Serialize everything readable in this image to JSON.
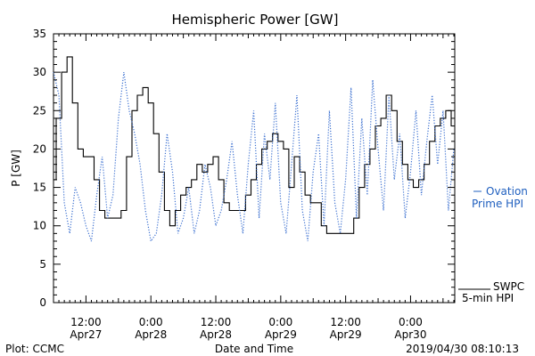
{
  "chart_data": {
    "type": "line",
    "title": "Hemispheric Power [GW]",
    "xlabel": "Date and Time",
    "ylabel": "P [GW]",
    "ylim": [
      0,
      35
    ],
    "yticks": [
      0,
      5,
      10,
      15,
      20,
      25,
      30,
      35
    ],
    "xticks": [
      {
        "x": "2019-04-27 12:00",
        "line1": "12:00",
        "line2": "Apr27"
      },
      {
        "x": "2019-04-28 00:00",
        "line1": "0:00",
        "line2": "Apr28"
      },
      {
        "x": "2019-04-28 12:00",
        "line1": "12:00",
        "line2": "Apr28"
      },
      {
        "x": "2019-04-29 00:00",
        "line1": "0:00",
        "line2": "Apr29"
      },
      {
        "x": "2019-04-29 12:00",
        "line1": "12:00",
        "line2": "Apr29"
      },
      {
        "x": "2019-04-30 00:00",
        "line1": "0:00",
        "line2": "Apr30"
      }
    ],
    "xlim": [
      "2019-04-27 06:00",
      "2019-04-30 08:10"
    ],
    "legend": [
      {
        "series": "ovation",
        "text": "Ovation",
        "text2": "Prime HPI",
        "placement": "right-middle"
      },
      {
        "series": "swpc",
        "text": "SWPC",
        "text2": "5-min HPI",
        "placement": "right-bottom"
      }
    ],
    "series": [
      {
        "id": "swpc",
        "color": "#000000",
        "style": "solid",
        "x": [
          "2019-04-27 06:00",
          "2019-04-27 07:00",
          "2019-04-27 08:00",
          "2019-04-27 09:00",
          "2019-04-27 10:00",
          "2019-04-27 11:00",
          "2019-04-27 12:00",
          "2019-04-27 13:00",
          "2019-04-27 14:00",
          "2019-04-27 15:00",
          "2019-04-27 16:00",
          "2019-04-27 17:00",
          "2019-04-27 18:00",
          "2019-04-27 19:00",
          "2019-04-27 20:00",
          "2019-04-27 21:00",
          "2019-04-27 22:00",
          "2019-04-27 23:00",
          "2019-04-28 00:00",
          "2019-04-28 01:00",
          "2019-04-28 02:00",
          "2019-04-28 03:00",
          "2019-04-28 04:00",
          "2019-04-28 05:00",
          "2019-04-28 06:00",
          "2019-04-28 07:00",
          "2019-04-28 08:00",
          "2019-04-28 09:00",
          "2019-04-28 10:00",
          "2019-04-28 11:00",
          "2019-04-28 12:00",
          "2019-04-28 13:00",
          "2019-04-28 14:00",
          "2019-04-28 15:00",
          "2019-04-28 16:00",
          "2019-04-28 17:00",
          "2019-04-28 18:00",
          "2019-04-28 19:00",
          "2019-04-28 20:00",
          "2019-04-28 21:00",
          "2019-04-28 22:00",
          "2019-04-28 23:00",
          "2019-04-29 00:00",
          "2019-04-29 01:00",
          "2019-04-29 02:00",
          "2019-04-29 03:00",
          "2019-04-29 04:00",
          "2019-04-29 05:00",
          "2019-04-29 06:00",
          "2019-04-29 07:00",
          "2019-04-29 08:00",
          "2019-04-29 09:00",
          "2019-04-29 10:00",
          "2019-04-29 11:00",
          "2019-04-29 12:00",
          "2019-04-29 13:00",
          "2019-04-29 14:00",
          "2019-04-29 15:00",
          "2019-04-29 16:00",
          "2019-04-29 17:00",
          "2019-04-29 18:00",
          "2019-04-29 19:00",
          "2019-04-29 20:00",
          "2019-04-29 21:00",
          "2019-04-29 22:00",
          "2019-04-29 23:00",
          "2019-04-30 00:00",
          "2019-04-30 01:00",
          "2019-04-30 02:00",
          "2019-04-30 03:00",
          "2019-04-30 04:00",
          "2019-04-30 05:00",
          "2019-04-30 06:00",
          "2019-04-30 07:00",
          "2019-04-30 08:00"
        ],
        "y": [
          16,
          24,
          30,
          32,
          26,
          20,
          19,
          19,
          16,
          12,
          11,
          11,
          11,
          12,
          19,
          25,
          27,
          28,
          26,
          22,
          17,
          12,
          10,
          12,
          14,
          15,
          16,
          18,
          17,
          18,
          19,
          16,
          13,
          12,
          12,
          12,
          14,
          16,
          18,
          20,
          21,
          22,
          21,
          20,
          15,
          19,
          17,
          14,
          13,
          13,
          10,
          9,
          9,
          9,
          9,
          9,
          11,
          15,
          18,
          20,
          23,
          24,
          27,
          25,
          21,
          18,
          16,
          15,
          16,
          18,
          21,
          23,
          24,
          25,
          23
        ]
      },
      {
        "id": "ovation",
        "color": "#3a6fd0",
        "style": "dotted",
        "x": [
          "2019-04-27 06:00",
          "2019-04-27 07:00",
          "2019-04-27 08:00",
          "2019-04-27 09:00",
          "2019-04-27 10:00",
          "2019-04-27 11:00",
          "2019-04-27 12:00",
          "2019-04-27 13:00",
          "2019-04-27 14:00",
          "2019-04-27 15:00",
          "2019-04-27 16:00",
          "2019-04-27 17:00",
          "2019-04-27 18:00",
          "2019-04-27 19:00",
          "2019-04-27 20:00",
          "2019-04-27 21:00",
          "2019-04-27 22:00",
          "2019-04-27 23:00",
          "2019-04-28 00:00",
          "2019-04-28 01:00",
          "2019-04-28 02:00",
          "2019-04-28 03:00",
          "2019-04-28 04:00",
          "2019-04-28 05:00",
          "2019-04-28 06:00",
          "2019-04-28 07:00",
          "2019-04-28 08:00",
          "2019-04-28 09:00",
          "2019-04-28 10:00",
          "2019-04-28 11:00",
          "2019-04-28 12:00",
          "2019-04-28 13:00",
          "2019-04-28 14:00",
          "2019-04-28 15:00",
          "2019-04-28 16:00",
          "2019-04-28 17:00",
          "2019-04-28 18:00",
          "2019-04-28 19:00",
          "2019-04-28 20:00",
          "2019-04-28 21:00",
          "2019-04-28 22:00",
          "2019-04-28 23:00",
          "2019-04-29 00:00",
          "2019-04-29 01:00",
          "2019-04-29 02:00",
          "2019-04-29 03:00",
          "2019-04-29 04:00",
          "2019-04-29 05:00",
          "2019-04-29 06:00",
          "2019-04-29 07:00",
          "2019-04-29 08:00",
          "2019-04-29 09:00",
          "2019-04-29 10:00",
          "2019-04-29 11:00",
          "2019-04-29 12:00",
          "2019-04-29 13:00",
          "2019-04-29 14:00",
          "2019-04-29 15:00",
          "2019-04-29 16:00",
          "2019-04-29 17:00",
          "2019-04-29 18:00",
          "2019-04-29 19:00",
          "2019-04-29 20:00",
          "2019-04-29 21:00",
          "2019-04-29 22:00",
          "2019-04-29 23:00",
          "2019-04-30 00:00",
          "2019-04-30 01:00",
          "2019-04-30 02:00",
          "2019-04-30 03:00",
          "2019-04-30 04:00",
          "2019-04-30 05:00",
          "2019-04-30 06:00",
          "2019-04-30 07:00",
          "2019-04-30 08:00"
        ],
        "y": [
          30,
          27,
          13,
          9,
          15,
          13,
          10,
          8,
          14,
          19,
          11,
          14,
          24,
          30,
          25,
          22,
          18,
          12,
          8,
          9,
          14,
          22,
          17,
          9,
          11,
          15,
          9,
          12,
          18,
          15,
          10,
          12,
          16,
          21,
          14,
          9,
          18,
          25,
          11,
          22,
          16,
          26,
          13,
          9,
          18,
          27,
          12,
          8,
          17,
          22,
          10,
          25,
          13,
          9,
          16,
          28,
          11,
          24,
          14,
          29,
          20,
          12,
          27,
          16,
          22,
          11,
          17,
          25,
          14,
          21,
          27,
          18,
          25,
          12,
          20
        ]
      }
    ]
  },
  "footer": {
    "left": "Plot: CCMC",
    "right": "2019/04/30 08:10:13"
  }
}
